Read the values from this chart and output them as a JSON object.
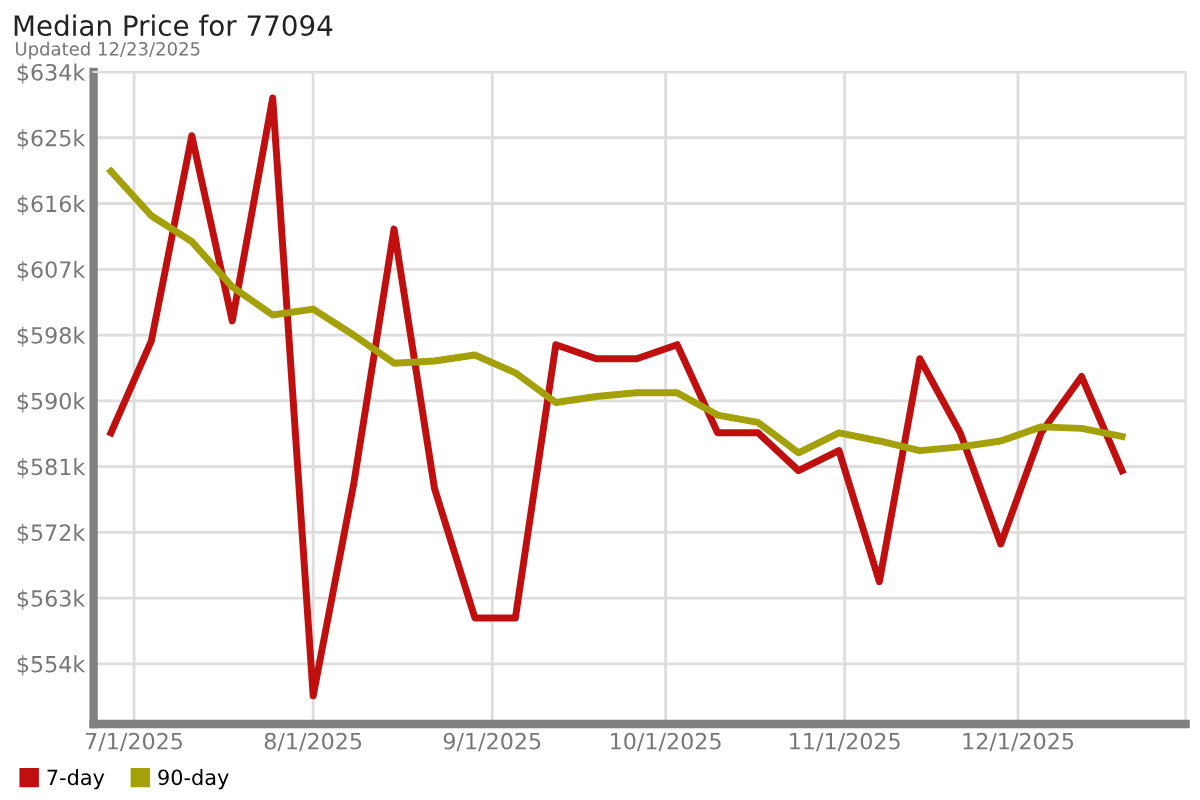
{
  "chart_data": {
    "type": "line",
    "title": "Median Price for 77094",
    "subtitle": "Updated 12/23/2025",
    "x": [
      "2025-06-27",
      "2025-07-04",
      "2025-07-11",
      "2025-07-18",
      "2025-07-25",
      "2025-08-01",
      "2025-08-08",
      "2025-08-15",
      "2025-08-22",
      "2025-08-29",
      "2025-09-05",
      "2025-09-12",
      "2025-09-19",
      "2025-09-26",
      "2025-10-03",
      "2025-10-10",
      "2025-10-17",
      "2025-10-24",
      "2025-10-31",
      "2025-11-07",
      "2025-11-14",
      "2025-11-21",
      "2025-11-28",
      "2025-12-05",
      "2025-12-12",
      "2025-12-19"
    ],
    "series": [
      {
        "name": "7-day",
        "color": "#c00f0f",
        "values": [
          585.3,
          597.7,
          625.4,
          600.4,
          630.5,
          549.8,
          578.3,
          612.8,
          577.8,
          560.3,
          560.3,
          597.2,
          595.3,
          595.3,
          597.2,
          585.3,
          585.3,
          580.2,
          582.9,
          565.2,
          595.3,
          585.3,
          570.3,
          585.3,
          592.9,
          580.2
        ]
      },
      {
        "name": "90-day",
        "color": "#a3a00a",
        "values": [
          620.6,
          614.6,
          611.1,
          605.0,
          601.2,
          602.0,
          598.5,
          594.7,
          595.0,
          595.8,
          593.4,
          589.4,
          590.2,
          590.7,
          590.7,
          587.7,
          586.7,
          582.6,
          585.3,
          584.2,
          582.9,
          583.4,
          584.2,
          586.1,
          585.9,
          584.8
        ]
      }
    ],
    "xlim": [
      "2025-06-24",
      "2025-12-30"
    ],
    "xticks": [
      {
        "value": "2025-07-01",
        "label": "7/1/2025"
      },
      {
        "value": "2025-08-01",
        "label": "8/1/2025"
      },
      {
        "value": "2025-09-01",
        "label": "9/1/2025"
      },
      {
        "value": "2025-10-01",
        "label": "10/1/2025"
      },
      {
        "value": "2025-11-01",
        "label": "11/1/2025"
      },
      {
        "value": "2025-12-01",
        "label": "12/1/2025"
      }
    ],
    "ylim": [
      546,
      634
    ],
    "yticks": [
      {
        "value": 554.125,
        "label": "$554k"
      },
      {
        "value": 563,
        "label": "$563k"
      },
      {
        "value": 571.875,
        "label": "$572k"
      },
      {
        "value": 580.75,
        "label": "$581k"
      },
      {
        "value": 589.625,
        "label": "$590k"
      },
      {
        "value": 598.5,
        "label": "$598k"
      },
      {
        "value": 607.375,
        "label": "$607k"
      },
      {
        "value": 616.25,
        "label": "$616k"
      },
      {
        "value": 625.125,
        "label": "$625k"
      },
      {
        "value": 634,
        "label": "$634k"
      }
    ],
    "grid": true,
    "legend": "bottom left",
    "marker": "none",
    "line_style": "solid"
  }
}
